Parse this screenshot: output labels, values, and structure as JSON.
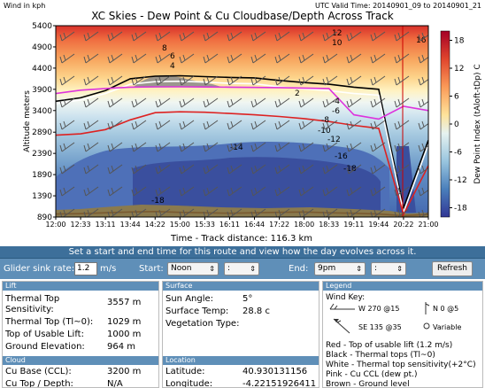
{
  "chart": {
    "title": "XC Skies - Dew Point & Cu Cloudbase/Depth Across Track",
    "wind_units": "Wind in kph",
    "valid_time": "UTC Valid Time: 20140901_09 to 20140901_21",
    "ylabel": "Altitude meters",
    "xlabel": "Time - Track distance: 116.3 km",
    "colorbar_label": "Dew Point Index (tAloft-tDp) C"
  },
  "chart_data": {
    "type": "heatmap",
    "title": "XC Skies - Dew Point & Cu Cloudbase/Depth Across Track",
    "xlabel": "Time - Track distance: 116.3 km",
    "ylabel": "Altitude meters",
    "x_ticks": [
      "12:00",
      "12:33",
      "13:11",
      "13:44",
      "14:22",
      "15:00",
      "15:33",
      "16:11",
      "16:44",
      "17:22",
      "18:00",
      "18:33",
      "19:11",
      "19:44",
      "20:22",
      "21:00"
    ],
    "y_ticks": [
      890,
      1390,
      1890,
      2390,
      2890,
      3400,
      3900,
      4400,
      4900,
      5400
    ],
    "ylim": [
      890,
      5400
    ],
    "colorbar_ticks": [
      18,
      12,
      6,
      0,
      -6,
      -12,
      -18
    ],
    "colorbar_range": [
      -20,
      20
    ],
    "contour_labels": [
      "12",
      "10",
      "8",
      "6",
      "4",
      "2",
      "-4",
      "-6",
      "-8",
      "-10",
      "-12",
      "-14",
      "-16",
      "-18",
      "-18",
      "16"
    ],
    "series": [
      {
        "name": "Thermal tops",
        "color": "#000000",
        "x": [
          "12:00",
          "12:33",
          "13:11",
          "13:44",
          "14:22",
          "15:00",
          "15:33",
          "16:11",
          "16:44",
          "17:22",
          "18:00",
          "18:33",
          "19:11",
          "19:44",
          "20:22",
          "21:00"
        ],
        "y": [
          3620,
          3700,
          3870,
          4150,
          4210,
          4220,
          4200,
          4180,
          4170,
          4110,
          4060,
          4020,
          3950,
          3900,
          1100,
          2700
        ]
      },
      {
        "name": "Thermal top sensitivity",
        "color": "#ffffff",
        "x": [
          "12:00",
          "12:33",
          "13:11",
          "13:44",
          "14:22",
          "15:00",
          "15:33",
          "16:11",
          "16:44",
          "17:22",
          "18:00",
          "18:33",
          "19:11",
          "19:44",
          "20:22",
          "21:00"
        ],
        "y": [
          3560,
          3650,
          3800,
          4020,
          4080,
          4090,
          4070,
          4040,
          4030,
          3960,
          3910,
          3870,
          3800,
          3760,
          1000,
          2600
        ]
      },
      {
        "name": "Top of usable lift",
        "color": "#dd2222",
        "x": [
          "12:00",
          "12:33",
          "13:11",
          "13:44",
          "14:22",
          "15:00",
          "15:33",
          "16:11",
          "16:44",
          "17:22",
          "18:00",
          "18:33",
          "19:11",
          "19:44",
          "20:22",
          "21:00"
        ],
        "y": [
          2820,
          2850,
          2950,
          3180,
          3350,
          3370,
          3360,
          3330,
          3300,
          3260,
          3210,
          3140,
          3050,
          2980,
          950,
          2100
        ]
      },
      {
        "name": "Cu CCL (dew pt.)",
        "color": "#dd33dd",
        "x": [
          "12:00",
          "12:33",
          "13:11",
          "13:44",
          "14:22",
          "15:00",
          "15:33",
          "16:11",
          "16:44",
          "17:22",
          "18:00",
          "18:33",
          "19:11",
          "19:44",
          "20:22",
          "21:00"
        ],
        "y": [
          3800,
          3880,
          3920,
          3950,
          3960,
          3960,
          3955,
          3950,
          3945,
          3940,
          3930,
          3920,
          3300,
          3200,
          3500,
          3400
        ]
      },
      {
        "name": "Ground level",
        "color": "#7a5a30",
        "x": [
          "12:00",
          "12:33",
          "13:11",
          "13:44",
          "14:22",
          "15:00",
          "15:33",
          "16:11",
          "16:44",
          "17:22",
          "18:00",
          "18:33",
          "19:11",
          "19:44",
          "20:22",
          "21:00"
        ],
        "y": [
          960,
          970,
          990,
          1010,
          1020,
          1000,
          990,
          980,
          990,
          1000,
          1010,
          990,
          980,
          960,
          920,
          950
        ]
      }
    ]
  },
  "ui": {
    "instructions": "Set a start and end time for this route and view how the day evolves across it.",
    "glider_label": "Glider sink rate:",
    "glider_value": "1.2",
    "glider_units": "m/s",
    "start_label": "Start:",
    "start_value": "Noon",
    "start_minutes": ":",
    "end_label": "End:",
    "end_value": "9pm",
    "end_minutes": ":",
    "refresh": "Refresh"
  },
  "lift": {
    "header": "Lift",
    "rows": [
      {
        "label": "Thermal Top Sensitivity:",
        "value": "3557 m"
      },
      {
        "label": "Thermal Top (Tl~0):",
        "value": "1029 m"
      },
      {
        "label": "Top of Usable Lift:",
        "value": "1000 m"
      },
      {
        "label": "Ground Elevation:",
        "value": "964 m"
      }
    ]
  },
  "cloud": {
    "header": "Cloud",
    "rows": [
      {
        "label": "Cu Base (CCL):",
        "value": "3200 m"
      },
      {
        "label": "Cu Top / Depth:",
        "value": "N/A"
      }
    ]
  },
  "surface": {
    "header": "Surface",
    "rows": [
      {
        "label": "Sun Angle:",
        "value": "5°"
      },
      {
        "label": "Surface Temp:",
        "value": "28.8 c"
      },
      {
        "label": "Vegetation Type:",
        "value": ""
      }
    ]
  },
  "location": {
    "header": "Location",
    "rows": [
      {
        "label": "Latitude:",
        "value": "40.930131156"
      },
      {
        "label": "Longitude:",
        "value": "-4.22151926411"
      }
    ]
  },
  "legend": {
    "header": "Legend",
    "wind_key": "Wind Key:",
    "w1": "W 270 @15",
    "w2": "N 0 @5",
    "w3": "SE 135 @35",
    "w4": "Variable",
    "lines": [
      "Red - Top of usable lift (1.2 m/s)",
      "Black - Thermal tops (Tl~0)",
      "White - Thermal top sensitivity(+2°C)",
      "Pink - Cu CCL (dew pt.)",
      "Brown - Ground level"
    ]
  },
  "colors": {
    "ui_blue": "#3d6f9a",
    "panel_blue": "#5f8fb8"
  }
}
